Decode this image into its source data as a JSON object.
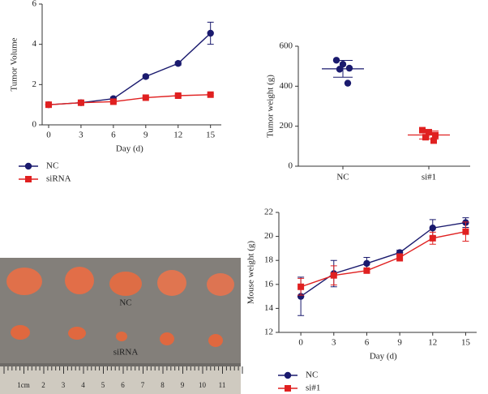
{
  "chart_data": [
    {
      "type": "line",
      "xlabel": "Day (d)",
      "ylabel": "Tumor Volume",
      "x": [
        0,
        3,
        6,
        9,
        12,
        15
      ],
      "xlim": [
        -0.6,
        16
      ],
      "xticks": [
        0,
        3,
        6,
        9,
        12,
        15
      ],
      "ylim": [
        0,
        6
      ],
      "yticks": [
        0,
        2,
        4,
        6
      ],
      "legend": "below",
      "series": [
        {
          "name": "NC",
          "color": "#1a1a6e",
          "marker": "circle",
          "values": [
            1.0,
            1.1,
            1.3,
            2.4,
            3.05,
            4.55
          ],
          "errors": [
            0.05,
            0.05,
            0.08,
            0.08,
            0.08,
            0.55
          ]
        },
        {
          "name": "siRNA",
          "color": "#e02020",
          "marker": "square",
          "values": [
            1.0,
            1.1,
            1.15,
            1.35,
            1.45,
            1.5
          ],
          "errors": [
            0.03,
            0.03,
            0.04,
            0.05,
            0.05,
            0.05
          ]
        }
      ]
    },
    {
      "type": "scatter",
      "ylabel": "Tumor weight (g)",
      "categories": [
        "NC",
        "si#1"
      ],
      "ylim": [
        0,
        600
      ],
      "yticks": [
        0,
        200,
        400,
        600
      ],
      "series": [
        {
          "color": "#1a1a6e",
          "marker": "circle",
          "values": [
            530,
            510,
            490,
            485,
            415
          ],
          "mean": 487,
          "sd": 42
        },
        {
          "color": "#e02020",
          "marker": "square",
          "values": [
            180,
            170,
            155,
            145,
            128
          ],
          "mean": 156,
          "sd": 20
        }
      ]
    },
    {
      "type": "line",
      "xlabel": "Day (d)",
      "ylabel": "Mouse weight (g)",
      "x": [
        0,
        3,
        6,
        9,
        12,
        15
      ],
      "xlim": [
        -2,
        16
      ],
      "xticks": [
        0,
        3,
        6,
        9,
        12,
        15
      ],
      "ylim": [
        12,
        22
      ],
      "yticks": [
        12,
        14,
        16,
        18,
        20,
        22
      ],
      "legend": "below",
      "series": [
        {
          "name": "NC",
          "color": "#1a1a6e",
          "marker": "circle",
          "values": [
            15.0,
            16.9,
            17.75,
            18.65,
            20.7,
            21.15
          ],
          "errors": [
            1.6,
            1.1,
            0.5,
            0.2,
            0.7,
            0.4
          ]
        },
        {
          "name": "si#1",
          "color": "#e02020",
          "marker": "square",
          "values": [
            15.8,
            16.75,
            17.15,
            18.25,
            19.85,
            20.4
          ],
          "errors": [
            0.7,
            0.8,
            0.1,
            0.3,
            0.5,
            0.8
          ]
        }
      ]
    }
  ],
  "photo": {
    "group_labels": [
      "NC",
      "siRNA"
    ],
    "ruler_labels": [
      "1cm",
      "2",
      "3",
      "4",
      "5",
      "6",
      "7",
      "8",
      "9",
      "10",
      "11"
    ]
  }
}
